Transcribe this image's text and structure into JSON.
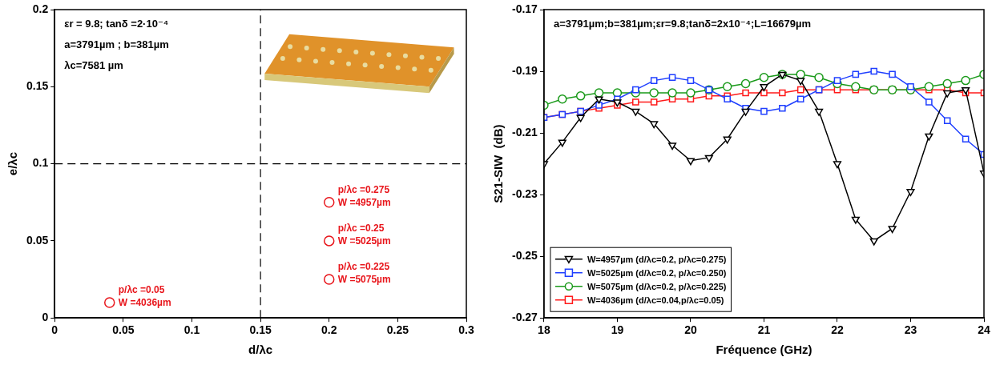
{
  "chart_data": [
    {
      "type": "scatter",
      "xlabel": "d/λc",
      "ylabel": "e/λc",
      "xlim": [
        0,
        0.3
      ],
      "xticks": [
        0,
        0.05,
        0.1,
        0.15,
        0.2,
        0.25,
        0.3
      ],
      "ylim": [
        0,
        0.2
      ],
      "yticks": [
        0,
        0.05,
        0.1,
        0.15,
        0.2
      ],
      "grid": false,
      "annotations": [
        "εr = 9.8; tanδ =2·10⁻⁴",
        "a=3791µm ; b=381µm",
        "λc=7581 µm"
      ],
      "reference_lines": {
        "x": [
          0.15
        ],
        "y": [
          0.1
        ],
        "color": "#000000",
        "line_style": "dashed"
      },
      "series": [
        {
          "color": "#e8151b",
          "marker": "circle-cross",
          "x": [
            0.04,
            0.2,
            0.2,
            0.2
          ],
          "values": [
            0.01,
            0.025,
            0.05,
            0.075
          ],
          "point_labels": [
            [
              "p/λc =0.05",
              "W =4036µm"
            ],
            [
              "p/λc =0.225",
              "W =5075µm"
            ],
            [
              "p/λc =0.25",
              "W =5025µm"
            ],
            [
              "p/λc =0.275",
              "W =4957µm"
            ]
          ]
        }
      ]
    },
    {
      "type": "line",
      "xlabel": "Fréquence (GHz)",
      "ylabel": "S21-SIW  (dB)",
      "annotations": [
        "a=3791µm;b=381µm;εr=9.8;tanδ=2x10⁻⁴;L=16679µm"
      ],
      "x": [
        18,
        18.25,
        18.5,
        18.75,
        19,
        19.25,
        19.5,
        19.75,
        20,
        20.25,
        20.5,
        20.75,
        21,
        21.25,
        21.5,
        21.75,
        22,
        22.25,
        22.5,
        22.75,
        23,
        23.25,
        23.5,
        23.75,
        24
      ],
      "xlim": [
        18,
        24
      ],
      "xticks": [
        18,
        19,
        20,
        21,
        22,
        23,
        24
      ],
      "ylim": [
        -0.27,
        -0.17
      ],
      "yticks": [
        -0.27,
        -0.25,
        -0.23,
        -0.21,
        -0.19,
        -0.17
      ],
      "grid": false,
      "legend": "lower left",
      "series": [
        {
          "name": "W=4957µm (d/λc=0.2, p/λc=0.275)",
          "color": "#000000",
          "marker": "triangle_down",
          "values": [
            -0.22,
            -0.213,
            -0.205,
            -0.199,
            -0.2,
            -0.203,
            -0.207,
            -0.214,
            -0.219,
            -0.218,
            -0.212,
            -0.203,
            -0.195,
            -0.191,
            -0.193,
            -0.203,
            -0.22,
            -0.238,
            -0.245,
            -0.241,
            -0.229,
            -0.211,
            -0.197,
            -0.196,
            -0.223
          ]
        },
        {
          "name": "W=5025µm (d/λc=0.2, p/λc=0.250)",
          "color": "#1f3fff",
          "marker": "square",
          "values": [
            -0.205,
            -0.204,
            -0.203,
            -0.201,
            -0.199,
            -0.196,
            -0.193,
            -0.192,
            -0.193,
            -0.196,
            -0.199,
            -0.202,
            -0.203,
            -0.202,
            -0.199,
            -0.196,
            -0.193,
            -0.191,
            -0.19,
            -0.191,
            -0.195,
            -0.2,
            -0.206,
            -0.212,
            -0.217
          ]
        },
        {
          "name": "W=5075µm (d/λc=0.2, p/λc=0.225)",
          "color": "#1a9a1a",
          "marker": "circle",
          "values": [
            -0.201,
            -0.199,
            -0.198,
            -0.197,
            -0.197,
            -0.197,
            -0.197,
            -0.197,
            -0.197,
            -0.196,
            -0.195,
            -0.194,
            -0.192,
            -0.191,
            -0.191,
            -0.192,
            -0.194,
            -0.195,
            -0.196,
            -0.196,
            -0.196,
            -0.195,
            -0.194,
            -0.193,
            -0.191
          ]
        },
        {
          "name": "W=4036µm (d/λc=0.04,p/λc=0.05)",
          "color": "#ff1a1a",
          "marker": "square",
          "values": [
            -0.205,
            -0.204,
            -0.203,
            -0.202,
            -0.201,
            -0.2,
            -0.2,
            -0.199,
            -0.199,
            -0.198,
            -0.198,
            -0.197,
            -0.197,
            -0.197,
            -0.196,
            -0.196,
            -0.196,
            -0.196,
            -0.196,
            -0.196,
            -0.196,
            -0.196,
            -0.196,
            -0.197,
            -0.197
          ]
        }
      ]
    }
  ]
}
